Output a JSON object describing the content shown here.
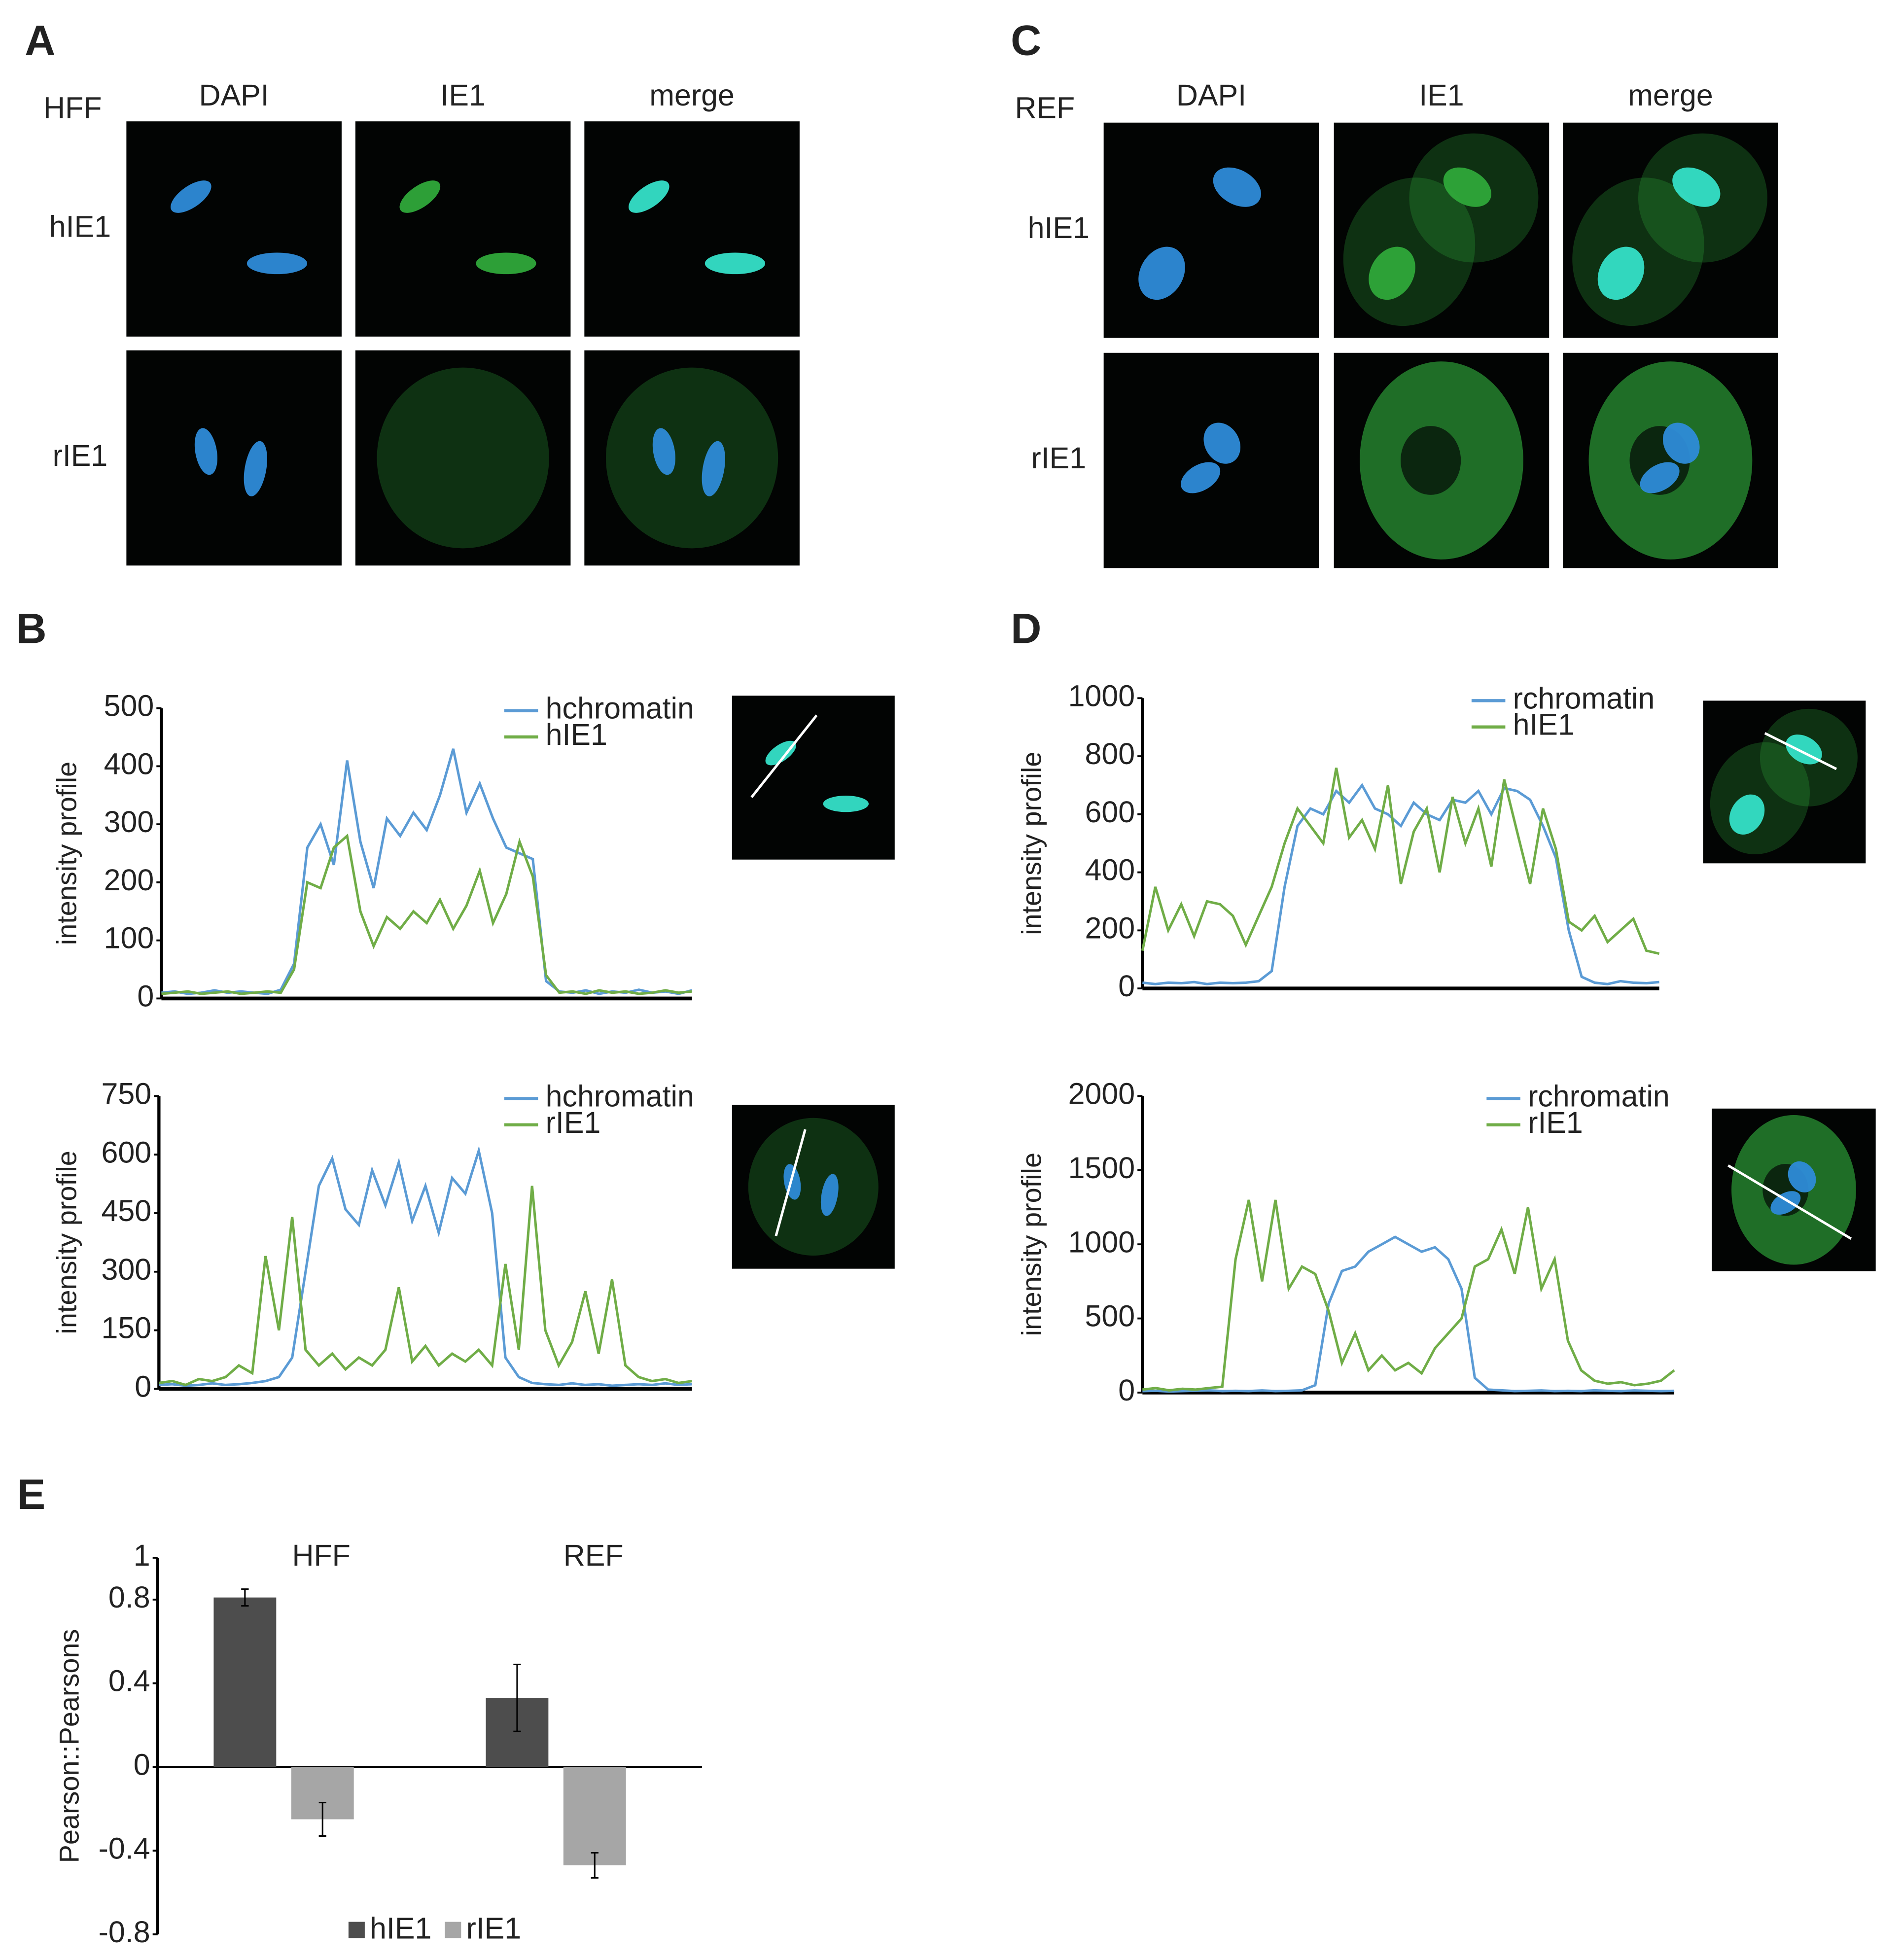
{
  "panel_labels": [
    "A",
    "B",
    "C",
    "D",
    "E"
  ],
  "images": [
    {
      "cell_line": "HFF",
      "columns": [
        "DAPI",
        "IE1",
        "merge"
      ],
      "rows": [
        "hIE1",
        "rIE1"
      ]
    },
    {
      "cell_line": "REF",
      "columns": [
        "DAPI",
        "IE1",
        "merge"
      ],
      "rows": [
        "hIE1",
        "rIE1"
      ]
    }
  ],
  "chart_data": [
    {
      "type": "line",
      "y_label": "intensity profile",
      "ylim": [
        0,
        500
      ],
      "yticks": [
        0,
        100,
        200,
        300,
        400,
        500
      ],
      "legend": "upper right",
      "series": [
        {
          "name": "hchromatin",
          "color": "#5b9bd5",
          "values": [
            10,
            12,
            8,
            10,
            14,
            10,
            12,
            10,
            8,
            15,
            60,
            260,
            300,
            230,
            410,
            270,
            190,
            310,
            280,
            320,
            290,
            350,
            430,
            320,
            370,
            310,
            260,
            250,
            240,
            30,
            12,
            10,
            14,
            8,
            12,
            10,
            15,
            10,
            12,
            8,
            14
          ]
        },
        {
          "name": "hIE1",
          "color": "#70ad47",
          "values": [
            8,
            10,
            12,
            8,
            10,
            12,
            8,
            10,
            12,
            10,
            50,
            200,
            190,
            260,
            280,
            150,
            90,
            140,
            120,
            150,
            130,
            170,
            120,
            160,
            220,
            130,
            180,
            270,
            210,
            40,
            10,
            12,
            8,
            14,
            10,
            12,
            8,
            10,
            14,
            10,
            12
          ]
        }
      ]
    },
    {
      "type": "line",
      "y_label": "intensity profile",
      "ylim": [
        0,
        750
      ],
      "yticks": [
        0,
        150,
        300,
        450,
        600,
        750
      ],
      "legend": "upper right",
      "series": [
        {
          "name": "hchromatin",
          "color": "#5b9bd5",
          "values": [
            10,
            12,
            8,
            10,
            14,
            10,
            12,
            15,
            20,
            30,
            80,
            300,
            520,
            590,
            460,
            420,
            560,
            470,
            580,
            430,
            520,
            400,
            540,
            500,
            610,
            450,
            80,
            30,
            15,
            12,
            10,
            14,
            10,
            12,
            8,
            10,
            12,
            10,
            14,
            10,
            12
          ]
        },
        {
          "name": "rIE1",
          "color": "#70ad47",
          "values": [
            15,
            20,
            10,
            25,
            20,
            30,
            60,
            40,
            340,
            150,
            440,
            100,
            60,
            90,
            50,
            80,
            60,
            100,
            260,
            70,
            110,
            60,
            90,
            70,
            100,
            60,
            320,
            100,
            520,
            150,
            60,
            120,
            250,
            90,
            280,
            60,
            30,
            20,
            25,
            15,
            20
          ]
        }
      ]
    },
    {
      "type": "line",
      "y_label": "intensity profile",
      "ylim": [
        0,
        1000
      ],
      "yticks": [
        0,
        200,
        400,
        600,
        800,
        1000
      ],
      "legend": "upper right",
      "series": [
        {
          "name": "rchromatin",
          "color": "#5b9bd5",
          "values": [
            20,
            15,
            20,
            18,
            22,
            15,
            20,
            18,
            20,
            25,
            60,
            350,
            560,
            620,
            600,
            680,
            640,
            700,
            620,
            600,
            560,
            640,
            600,
            580,
            650,
            640,
            680,
            600,
            690,
            680,
            650,
            560,
            450,
            200,
            40,
            20,
            15,
            25,
            20,
            18,
            22
          ]
        },
        {
          "name": "hIE1",
          "color": "#70ad47",
          "values": [
            130,
            350,
            200,
            290,
            180,
            300,
            290,
            250,
            150,
            250,
            350,
            500,
            620,
            560,
            500,
            760,
            520,
            580,
            480,
            700,
            360,
            540,
            620,
            400,
            660,
            500,
            620,
            420,
            720,
            540,
            360,
            620,
            480,
            230,
            200,
            250,
            160,
            200,
            240,
            130,
            120
          ]
        }
      ]
    },
    {
      "type": "line",
      "y_label": "intensity profile",
      "ylim": [
        0,
        2000
      ],
      "yticks": [
        0,
        500,
        1000,
        1500,
        2000
      ],
      "legend": "upper right",
      "series": [
        {
          "name": "rchromatin",
          "color": "#5b9bd5",
          "values": [
            10,
            12,
            8,
            10,
            12,
            15,
            10,
            12,
            10,
            14,
            10,
            12,
            15,
            50,
            600,
            820,
            850,
            950,
            1000,
            1050,
            1000,
            950,
            980,
            900,
            700,
            100,
            20,
            15,
            10,
            12,
            14,
            10,
            12,
            10,
            15,
            12,
            10,
            14,
            12,
            10,
            12
          ]
        },
        {
          "name": "rIE1",
          "color": "#70ad47",
          "values": [
            20,
            30,
            15,
            25,
            20,
            30,
            40,
            900,
            1300,
            750,
            1300,
            700,
            850,
            800,
            550,
            200,
            400,
            150,
            250,
            150,
            200,
            130,
            300,
            400,
            500,
            850,
            900,
            1100,
            800,
            1250,
            700,
            900,
            350,
            150,
            80,
            60,
            70,
            50,
            60,
            80,
            150
          ]
        }
      ]
    },
    {
      "type": "bar",
      "y_label": "Pearson::Pearsons",
      "categories": [
        "HFF",
        "REF"
      ],
      "ylim": [
        -0.8,
        1
      ],
      "yticks": [
        -0.8,
        -0.4,
        0,
        0.4,
        0.8,
        1
      ],
      "legend": "lower center",
      "series": [
        {
          "name": "hIE1",
          "color": "#4d4d4d",
          "values": [
            0.81,
            0.33
          ],
          "errors": [
            0.04,
            0.16
          ]
        },
        {
          "name": "rIE1",
          "color": "#a6a6a6",
          "values": [
            -0.25,
            -0.47
          ],
          "errors": [
            0.08,
            0.06
          ]
        }
      ]
    }
  ]
}
